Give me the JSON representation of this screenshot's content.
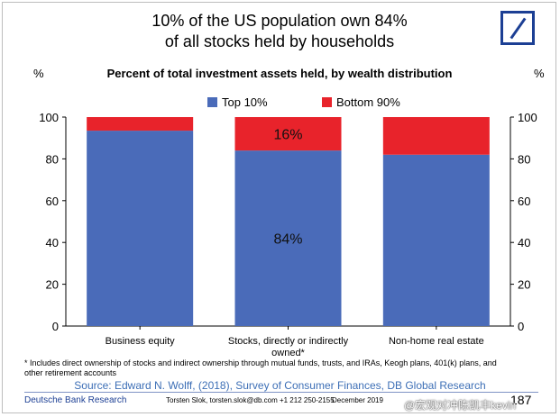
{
  "header": {
    "title_line1": "10% of the US population own 84%",
    "title_line2": "of all stocks held by households",
    "unit_left": "%",
    "unit_right": "%"
  },
  "chart_data": {
    "type": "bar",
    "stacked": true,
    "title": "Percent of total investment assets held, by wealth distribution",
    "categories": [
      "Business equity",
      "Stocks, directly or indirectly owned*",
      "Non-home real estate"
    ],
    "category_lines": [
      [
        "Business equity"
      ],
      [
        "Stocks, directly or indirectly",
        "owned*"
      ],
      [
        "Non-home real estate"
      ]
    ],
    "series": [
      {
        "name": "Top 10%",
        "values": [
          93.5,
          84,
          82
        ],
        "color": "#4a6bb9"
      },
      {
        "name": "Bottom 90%",
        "values": [
          6.5,
          16,
          18
        ],
        "color": "#e8232b"
      }
    ],
    "data_labels": [
      {
        "category_index": 1,
        "series_index": 0,
        "text": "84%"
      },
      {
        "category_index": 1,
        "series_index": 1,
        "text": "16%"
      }
    ],
    "ylim": [
      0,
      100
    ],
    "yticks": [
      0,
      20,
      40,
      60,
      80,
      100
    ],
    "legend_position": "top-center",
    "grid": false
  },
  "footnote": "* Includes direct ownership of stocks and indirect ownership through mutual funds, trusts, and IRAs, Keogh plans, 401(k) plans, and other retirement accounts",
  "source": "Source: Edward N. Wolff, (2018), Survey of Consumer Finances, DB Global Research",
  "footer": {
    "brand": "Deutsche Bank Research",
    "contact": "Torsten Slok, torsten.slok@db.com  +1 212 250-2155",
    "date": "December 2019",
    "page": "187"
  },
  "watermark": "@宏观对冲陈凯丰kevin"
}
